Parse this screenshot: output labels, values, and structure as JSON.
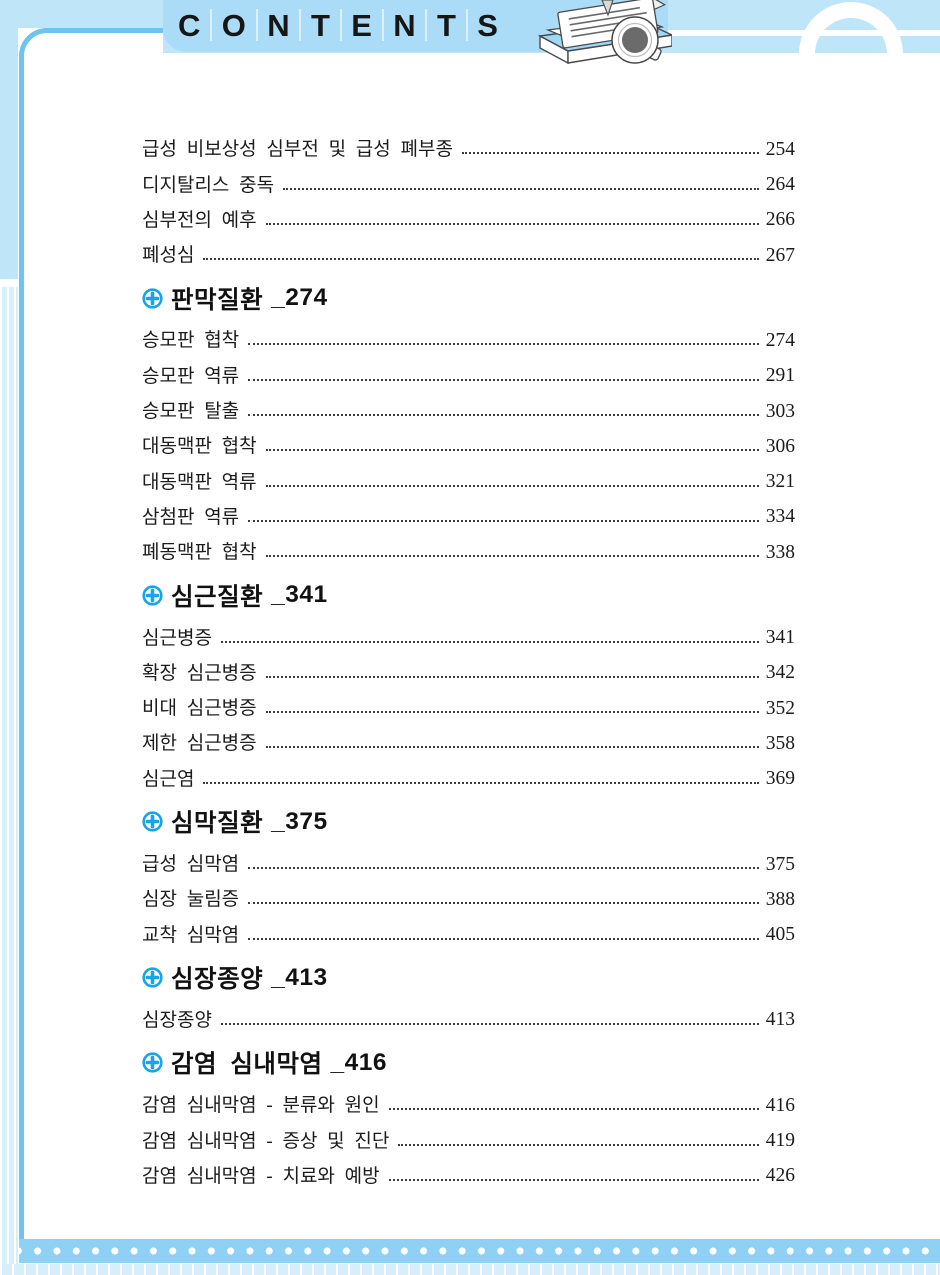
{
  "page_title": "CONTENTS",
  "header": {
    "title_letters": [
      "C",
      "O",
      "N",
      "T",
      "E",
      "N",
      "T",
      "S"
    ],
    "decorations": [
      "stacked-books-icon",
      "pencil-icon",
      "coffee-cup-icon",
      "arch-ring-decoration"
    ]
  },
  "colors": {
    "band_blue": "#bfe5f9",
    "tab_blue": "#abdcf7",
    "frame_border_blue": "#6fc3ef",
    "bottom_band_blue": "#8ed1f4",
    "rib_stripe_blue": "#d7eefb",
    "section_icon_blue": "#17a5e6",
    "text_black": "#1c1c1c"
  },
  "toc": [
    {
      "header": null,
      "items": [
        {
          "title": "급성 비보상성 심부전 및 급성 폐부종",
          "page": "254"
        },
        {
          "title": "디지탈리스 중독",
          "page": "264"
        },
        {
          "title": "심부전의 예후",
          "page": "266"
        },
        {
          "title": "폐성심",
          "page": "267"
        }
      ]
    },
    {
      "header": {
        "label": "판막질환",
        "page_label": "_274"
      },
      "items": [
        {
          "title": "승모판 협착",
          "page": "274"
        },
        {
          "title": "승모판 역류",
          "page": "291"
        },
        {
          "title": "승모판 탈출",
          "page": "303"
        },
        {
          "title": "대동맥판 협착",
          "page": "306"
        },
        {
          "title": "대동맥판 역류",
          "page": "321"
        },
        {
          "title": "삼첨판 역류",
          "page": "334"
        },
        {
          "title": "폐동맥판 협착",
          "page": "338"
        }
      ]
    },
    {
      "header": {
        "label": "심근질환",
        "page_label": "_341"
      },
      "items": [
        {
          "title": "심근병증",
          "page": "341"
        },
        {
          "title": "확장 심근병증",
          "page": "342"
        },
        {
          "title": "비대 심근병증",
          "page": "352"
        },
        {
          "title": "제한 심근병증",
          "page": "358"
        },
        {
          "title": "심근염",
          "page": "369"
        }
      ]
    },
    {
      "header": {
        "label": "심막질환",
        "page_label": "_375"
      },
      "items": [
        {
          "title": "급성 심막염",
          "page": "375"
        },
        {
          "title": "심장 눌림증",
          "page": "388"
        },
        {
          "title": "교착 심막염",
          "page": "405"
        }
      ]
    },
    {
      "header": {
        "label": "심장종양",
        "page_label": "_413"
      },
      "items": [
        {
          "title": "심장종양",
          "page": "413"
        }
      ]
    },
    {
      "header": {
        "label": "감염 심내막염",
        "page_label": "_416"
      },
      "items": [
        {
          "title": "감염 심내막염 - 분류와 원인",
          "page": "416"
        },
        {
          "title": "감염 심내막염 - 증상 및 진단",
          "page": "419"
        },
        {
          "title": "감염 심내막염 - 치료와 예방",
          "page": "426"
        }
      ]
    }
  ]
}
